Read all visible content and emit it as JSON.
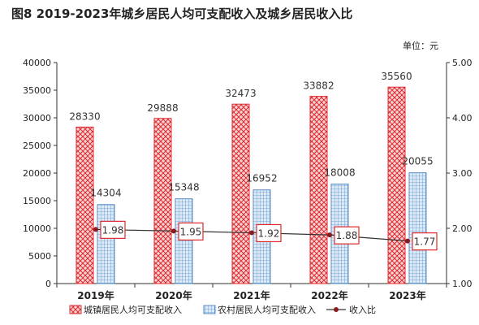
{
  "title": "图8    2019-2023年城乡居民人均可支配收入及城乡居民收入比",
  "unit": "单位：元",
  "colors": {
    "urban": "#e0292f",
    "rural": "#6fa8dc",
    "ratio": "#8b1a1a",
    "box": "#e0292f"
  },
  "chart_data": {
    "type": "bar",
    "categories": [
      "2019年",
      "2020年",
      "2021年",
      "2022年",
      "2023年"
    ],
    "series": [
      {
        "name": "城镇居民人均可支配收入",
        "values": [
          28330,
          29888,
          32473,
          33882,
          35560
        ]
      },
      {
        "name": "农村居民人均可支配收入",
        "values": [
          14304,
          15348,
          16952,
          18008,
          20055
        ]
      }
    ],
    "ratio": {
      "name": "收入比",
      "values": [
        1.98,
        1.95,
        1.92,
        1.88,
        1.77
      ]
    },
    "ylim": [
      0,
      40000
    ],
    "yticks": [
      0,
      5000,
      10000,
      15000,
      20000,
      25000,
      30000,
      35000,
      40000
    ],
    "y2lim": [
      1.0,
      5.0
    ],
    "y2ticks": [
      "1.00",
      "2.00",
      "3.00",
      "4.00",
      "5.00"
    ],
    "legend_position": "bottom",
    "grid": false
  }
}
